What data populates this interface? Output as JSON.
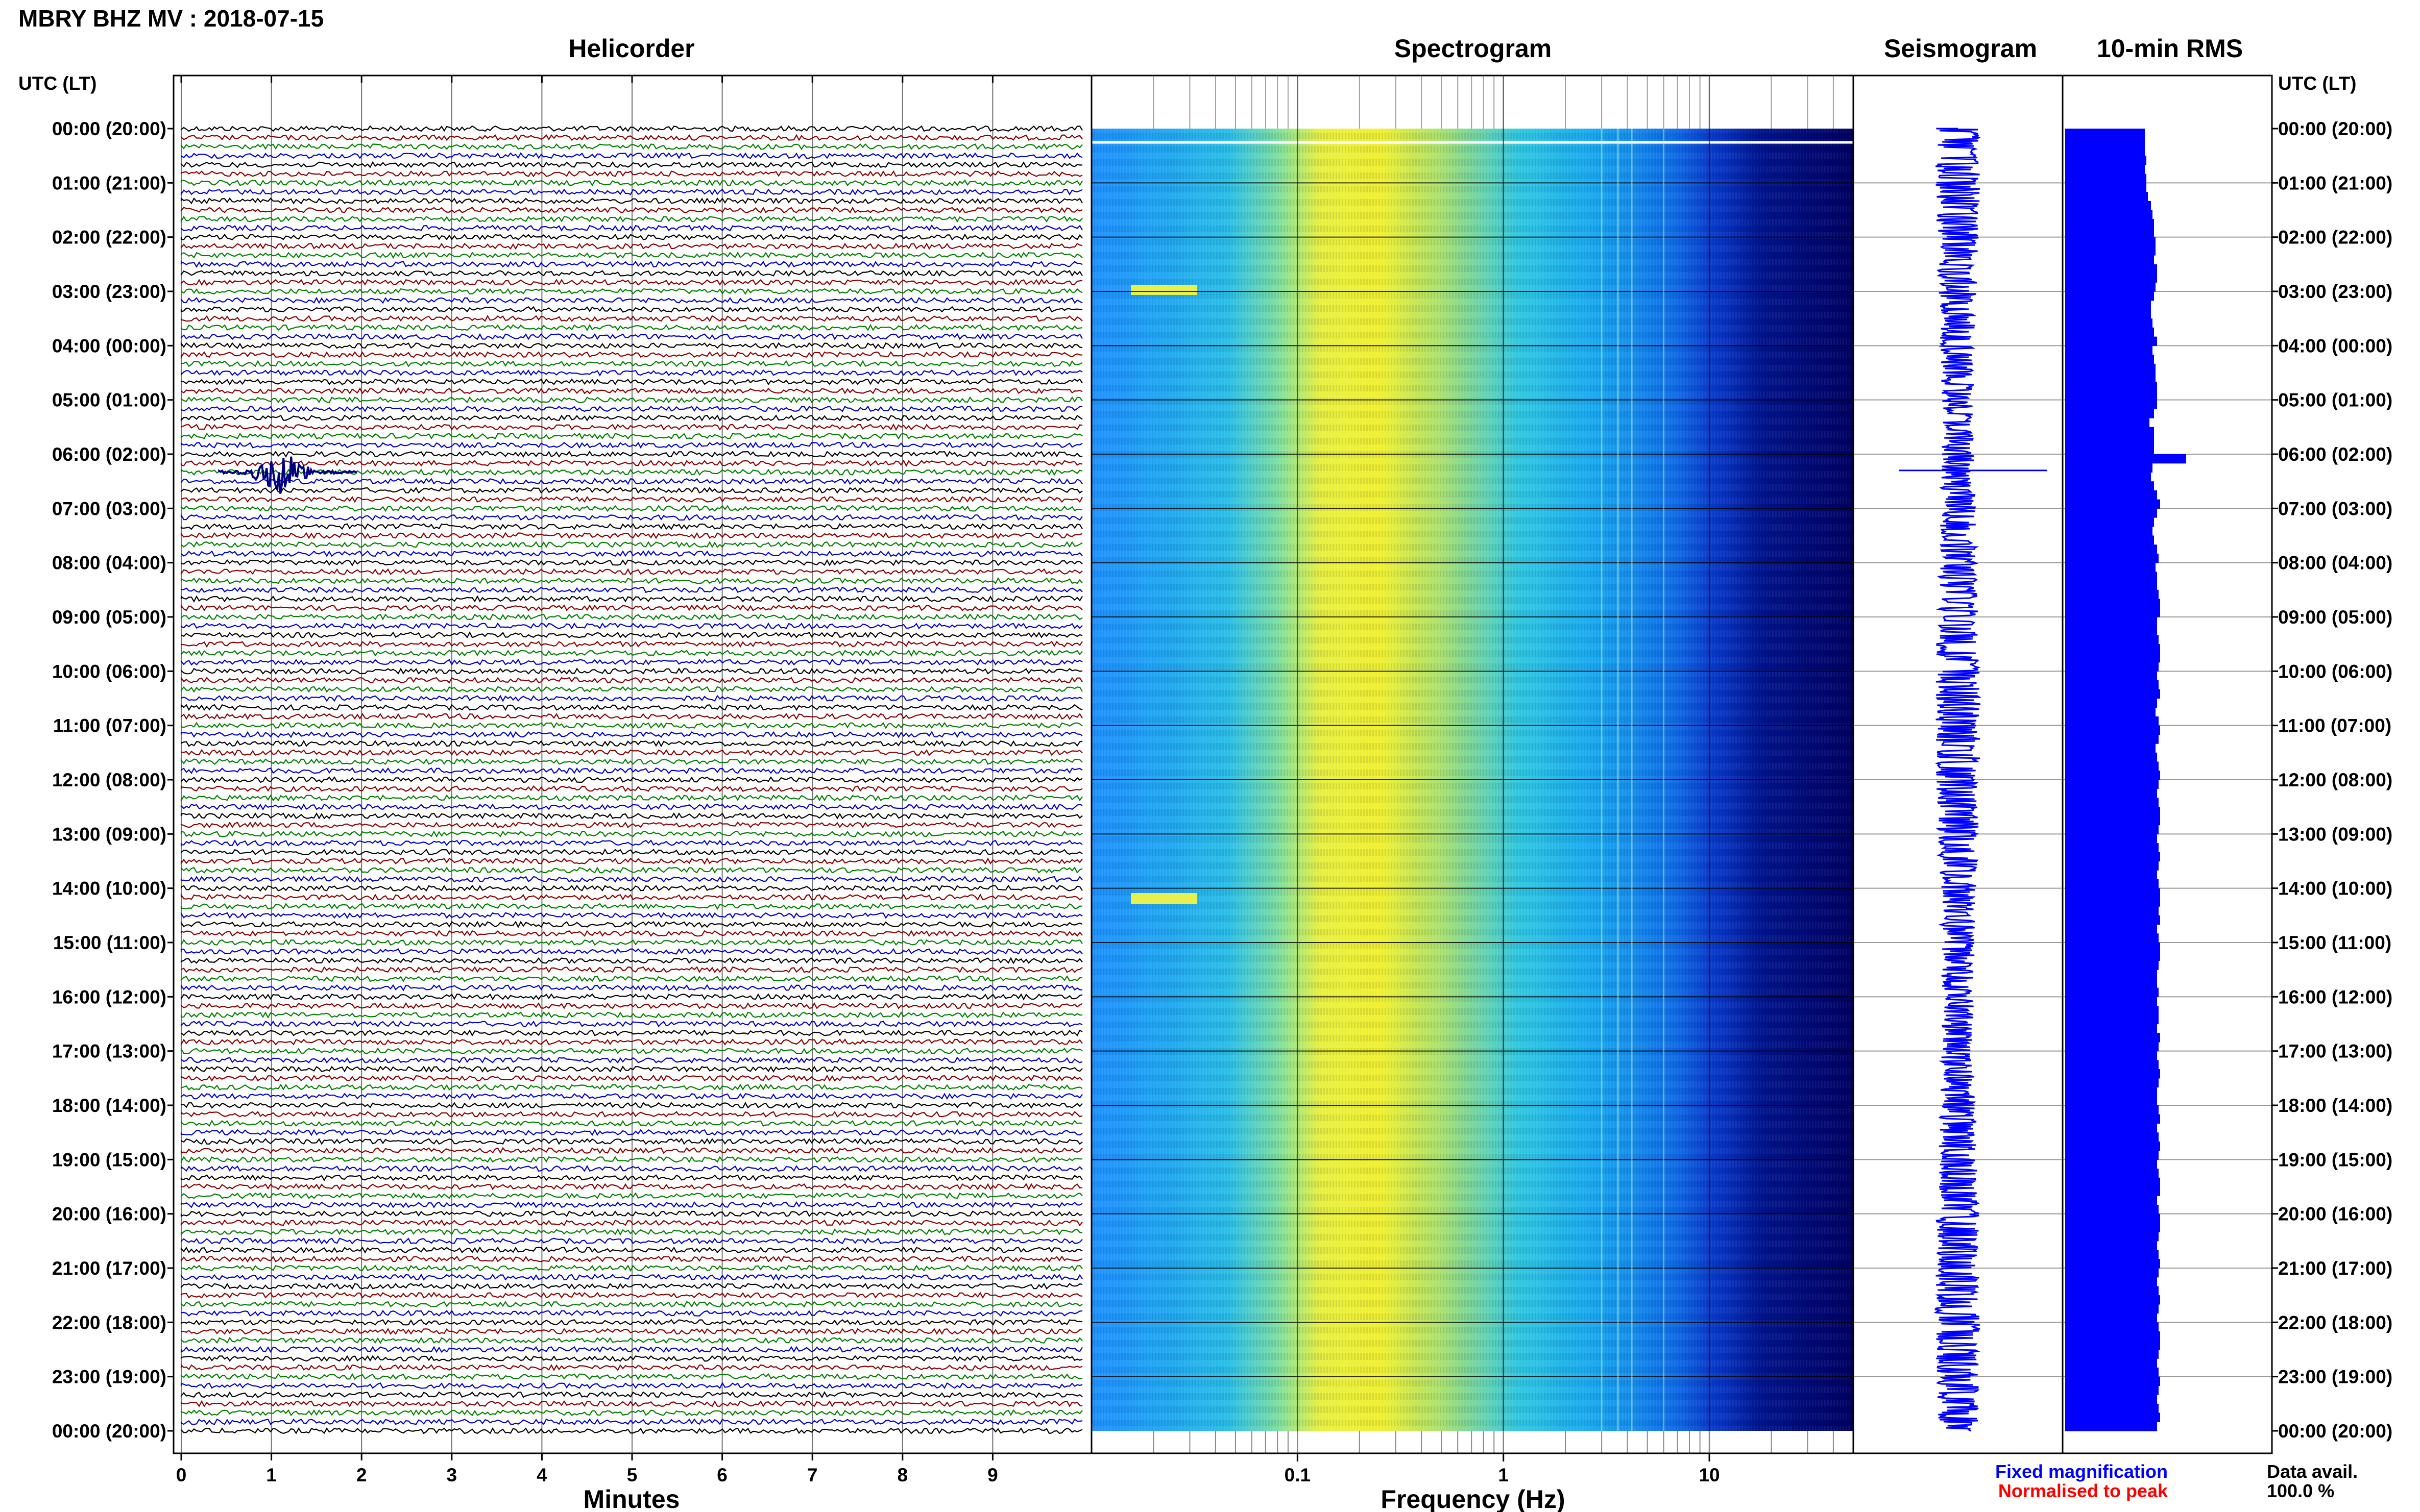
{
  "title": "MBRY BHZ MV : 2018-07-15",
  "panels": {
    "helicorder": "Helicorder",
    "spectrogram": "Spectrogram",
    "seismogram": "Seismogram",
    "rms": "10-min RMS"
  },
  "time_axis_label": "UTC (LT)",
  "time_labels": [
    "00:00 (20:00)",
    "01:00 (21:00)",
    "02:00 (22:00)",
    "03:00 (23:00)",
    "04:00 (00:00)",
    "05:00 (01:00)",
    "06:00 (02:00)",
    "07:00 (03:00)",
    "08:00 (04:00)",
    "09:00 (05:00)",
    "10:00 (06:00)",
    "11:00 (07:00)",
    "12:00 (08:00)",
    "13:00 (09:00)",
    "14:00 (10:00)",
    "15:00 (11:00)",
    "16:00 (12:00)",
    "17:00 (13:00)",
    "18:00 (14:00)",
    "19:00 (15:00)",
    "20:00 (16:00)",
    "21:00 (17:00)",
    "22:00 (18:00)",
    "23:00 (19:00)",
    "00:00 (20:00)"
  ],
  "legend": {
    "fixed": "Fixed magnification",
    "normalised": "Normalised to peak",
    "fixed_color": "#0000ff",
    "normalised_color": "#ff0000"
  },
  "data_avail": {
    "label": "Data avail.",
    "value": "100.0 %"
  },
  "chart_data": [
    {
      "type": "line",
      "panel": "helicorder",
      "xlabel": "Minutes",
      "xlim": [
        0,
        10
      ],
      "xticks": [
        "0",
        "1",
        "2",
        "3",
        "4",
        "5",
        "6",
        "7",
        "8",
        "9"
      ],
      "traces_per_hour": 6,
      "trace_colors": [
        "#000000",
        "#8b0000",
        "#008000",
        "#0000cd"
      ],
      "events": [
        {
          "hour": 6,
          "trace": 2,
          "minute": 1.1,
          "color": "#000080"
        }
      ]
    },
    {
      "type": "heatmap",
      "panel": "spectrogram",
      "xlabel": "Frequency (Hz)",
      "xscale": "log",
      "xlim": [
        0.01,
        50
      ],
      "xticks": [
        "0.1",
        "1",
        "10"
      ],
      "xtick_values": [
        0.1,
        1,
        10
      ]
    },
    {
      "type": "line",
      "panel": "seismogram",
      "event_hour": 6.3
    },
    {
      "type": "bar",
      "panel": "rms",
      "interval_min": 10,
      "color": "#0000ff",
      "values": [
        0.52,
        0.52,
        0.52,
        0.53,
        0.52,
        0.53,
        0.53,
        0.54,
        0.56,
        0.57,
        0.58,
        0.58,
        0.59,
        0.59,
        0.58,
        0.6,
        0.6,
        0.59,
        0.58,
        0.56,
        0.56,
        0.57,
        0.58,
        0.6,
        0.57,
        0.58,
        0.59,
        0.59,
        0.6,
        0.6,
        0.6,
        0.58,
        0.55,
        0.58,
        0.58,
        0.58,
        0.79,
        0.57,
        0.56,
        0.58,
        0.6,
        0.62,
        0.6,
        0.58,
        0.57,
        0.58,
        0.6,
        0.61,
        0.59,
        0.6,
        0.6,
        0.61,
        0.62,
        0.62,
        0.6,
        0.6,
        0.61,
        0.62,
        0.62,
        0.61,
        0.6,
        0.61,
        0.62,
        0.6,
        0.59,
        0.61,
        0.62,
        0.61,
        0.59,
        0.6,
        0.61,
        0.62,
        0.61,
        0.6,
        0.61,
        0.62,
        0.62,
        0.61,
        0.6,
        0.61,
        0.62,
        0.61,
        0.6,
        0.61,
        0.62,
        0.62,
        0.61,
        0.62,
        0.6,
        0.61,
        0.62,
        0.62,
        0.61,
        0.6,
        0.6,
        0.61,
        0.6,
        0.61,
        0.61,
        0.6,
        0.62,
        0.61,
        0.6,
        0.61,
        0.62,
        0.61,
        0.6,
        0.6,
        0.61,
        0.62,
        0.6,
        0.61,
        0.62,
        0.61,
        0.6,
        0.61,
        0.62,
        0.62,
        0.6,
        0.61,
        0.62,
        0.62,
        0.61,
        0.6,
        0.61,
        0.62,
        0.61,
        0.6,
        0.61,
        0.62,
        0.61,
        0.6,
        0.61,
        0.62,
        0.62,
        0.61,
        0.6,
        0.61,
        0.62,
        0.61,
        0.6,
        0.61,
        0.62,
        0.6
      ]
    }
  ]
}
